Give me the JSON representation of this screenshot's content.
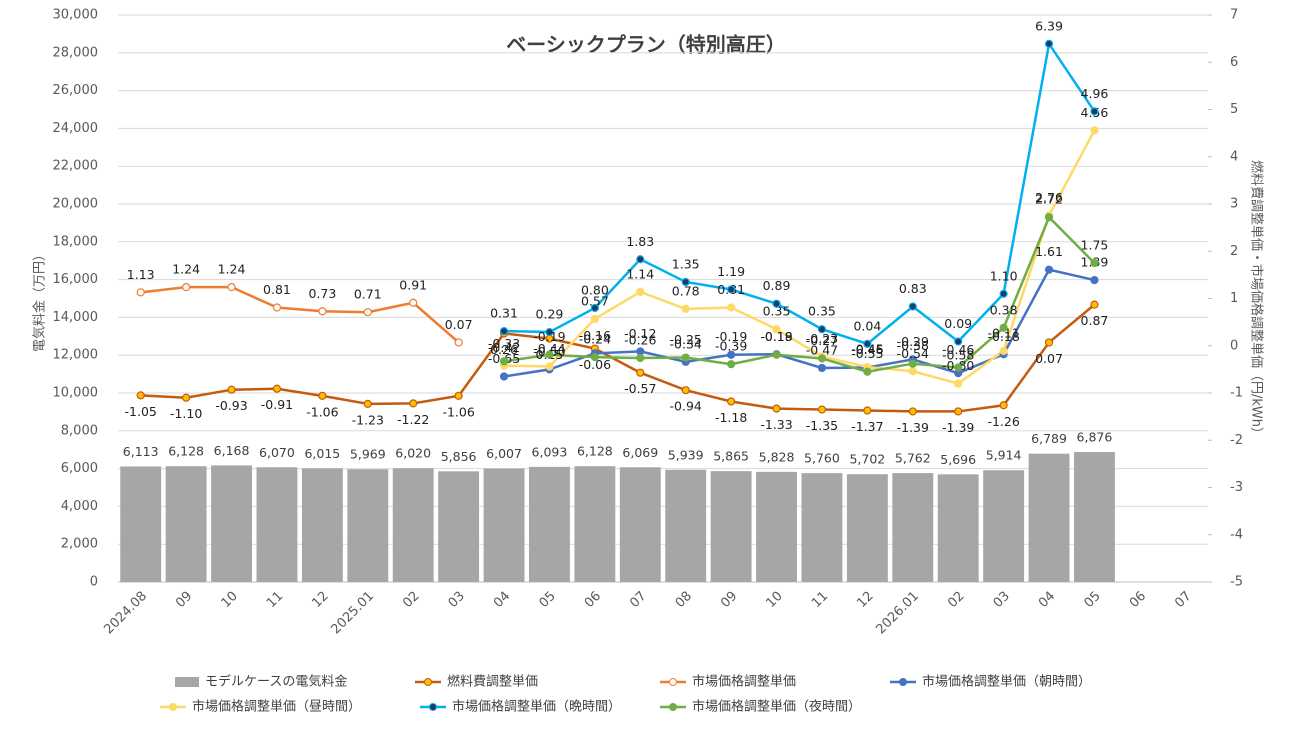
{
  "chart_data": {
    "type": "bar_line",
    "title": "ベーシックプラン（特別高圧）",
    "ylabel": "電気料金（万円）",
    "y2label": "燃料費調整単価・市場価格調整単価（円/kWh）",
    "categories": [
      "2024.08",
      "09",
      "10",
      "11",
      "12",
      "2025.01",
      "02",
      "03",
      "04",
      "05",
      "06",
      "07",
      "08",
      "09",
      "10",
      "11",
      "12",
      "2026.01",
      "02",
      "03",
      "04",
      "05",
      "06",
      "07"
    ],
    "bars": {
      "name": "モデルケースの電気料金",
      "color": "#a6a6a6",
      "values": [
        6113,
        6128,
        6168,
        6070,
        6015,
        5969,
        6020,
        5856,
        6007,
        6093,
        6128,
        6069,
        5939,
        5865,
        5828,
        5760,
        5702,
        5762,
        5696,
        5914,
        6789,
        6876,
        null,
        null
      ],
      "value_labels": [
        "6,113",
        "6,128",
        "6,168",
        "6,070",
        "6,015",
        "5,969",
        "6,020",
        "5,856",
        "6,007",
        "6,093",
        "6,128",
        "6,069",
        "5,939",
        "5,865",
        "5,828",
        "5,760",
        "5,702",
        "5,762",
        "5,696",
        "5,914",
        "6,789",
        "6,876",
        null,
        null
      ]
    },
    "series": [
      {
        "name": "燃料費調整単価",
        "color": "#c55a11",
        "marker_color": "#ffc000",
        "axis": "y2",
        "label_side": "below",
        "values": [
          -1.05,
          -1.1,
          -0.93,
          -0.91,
          -1.06,
          -1.23,
          -1.22,
          -1.06,
          0.26,
          0.15,
          -0.06,
          -0.57,
          -0.94,
          -1.18,
          -1.33,
          -1.35,
          -1.37,
          -1.39,
          -1.39,
          -1.26,
          0.07,
          0.87,
          null,
          null
        ],
        "value_labels": [
          "-1.05",
          "-1.10",
          "-0.93",
          "-0.91",
          "-1.06",
          "-1.23",
          "-1.22",
          "-1.06",
          "0.26",
          "0.15",
          "-0.06",
          "-0.57",
          "-0.94",
          "-1.18",
          "-1.33",
          "-1.35",
          "-1.37",
          "-1.39",
          "-1.39",
          "-1.26",
          "0.07",
          "0.87",
          null,
          null
        ]
      },
      {
        "name": "市場価格調整単価",
        "color": "#ed7d31",
        "marker_color": "#ffffff",
        "axis": "y2",
        "label_side": "above",
        "values": [
          1.13,
          1.24,
          1.24,
          0.81,
          0.73,
          0.71,
          0.91,
          0.07,
          null,
          null,
          null,
          null,
          null,
          null,
          null,
          null,
          null,
          null,
          null,
          null,
          null,
          null,
          null,
          null
        ],
        "value_labels": [
          "1.13",
          "1.24",
          "1.24",
          "0.81",
          "0.73",
          "0.71",
          "0.91",
          "0.07",
          null,
          null,
          null,
          null,
          null,
          null,
          null,
          null,
          null,
          null,
          null,
          null,
          null,
          null,
          null,
          null
        ]
      },
      {
        "name": "市場価格調整単価（朝時間）",
        "color": "#4472c4",
        "marker_color": "#4472c4",
        "axis": "y2",
        "label_side": "above",
        "values": [
          null,
          null,
          null,
          null,
          null,
          null,
          null,
          null,
          -0.65,
          -0.5,
          -0.16,
          -0.12,
          -0.34,
          -0.19,
          -0.18,
          -0.47,
          -0.46,
          -0.29,
          -0.58,
          -0.18,
          1.61,
          1.39,
          null,
          null
        ],
        "value_labels": [
          null,
          null,
          null,
          null,
          null,
          null,
          null,
          null,
          "-0.65",
          "-0.50",
          "-0.16",
          "-0.12",
          "-0.34",
          "-0.19",
          "-0.18",
          "-0.47",
          "-0.46",
          "-0.29",
          "-0.58",
          "-0.18",
          "1.61",
          "1.39",
          null,
          null
        ]
      },
      {
        "name": "市場価格調整単価（昼時間）",
        "color": "#ffd966",
        "marker_color": "#ffd966",
        "axis": "y2",
        "label_side": "above",
        "values": [
          null,
          null,
          null,
          null,
          null,
          null,
          null,
          null,
          -0.42,
          -0.44,
          0.57,
          1.14,
          0.78,
          0.81,
          0.35,
          -0.23,
          -0.45,
          -0.54,
          -0.8,
          -0.11,
          2.76,
          4.56,
          null,
          null
        ],
        "value_labels": [
          null,
          null,
          null,
          null,
          null,
          null,
          null,
          null,
          "-0.42",
          "-0.44",
          "0.57",
          "1.14",
          "0.78",
          "0.81",
          "0.35",
          "-0.23",
          "-0.45",
          "-0.54",
          "-0.80",
          "-0.11",
          "2.76",
          "4.56",
          null,
          null
        ]
      },
      {
        "name": "市場価格調整単価（晩時間）",
        "color": "#00b0f0",
        "marker_color": "#1f3864",
        "axis": "y2",
        "label_side": "above",
        "values": [
          null,
          null,
          null,
          null,
          null,
          null,
          null,
          null,
          0.31,
          0.29,
          0.8,
          1.83,
          1.35,
          1.19,
          0.89,
          0.35,
          0.04,
          0.83,
          0.09,
          1.1,
          6.39,
          4.96,
          null,
          null
        ],
        "value_labels": [
          null,
          null,
          null,
          null,
          null,
          null,
          null,
          null,
          "0.31",
          "0.29",
          "0.80",
          "1.83",
          "1.35",
          "1.19",
          "0.89",
          "0.35",
          "0.04",
          "0.83",
          "0.09",
          "1.10",
          "6.39",
          "4.96",
          null,
          null
        ]
      },
      {
        "name": "市場価格調整単価（夜時間）",
        "color": "#70ad47",
        "marker_color": "#70ad47",
        "axis": "y2",
        "label_side": "above",
        "values": [
          null,
          null,
          null,
          null,
          null,
          null,
          null,
          null,
          -0.33,
          -0.19,
          -0.24,
          -0.26,
          -0.25,
          -0.39,
          -0.19,
          -0.27,
          -0.55,
          -0.38,
          -0.46,
          0.38,
          2.72,
          1.75,
          null,
          null
        ],
        "value_labels": [
          null,
          null,
          null,
          null,
          null,
          null,
          null,
          null,
          "-0.33",
          "-0.19",
          "-0.24",
          "-0.26",
          "-0.25",
          "-0.39",
          "-0.19",
          "-0.27",
          "-0.55",
          "-0.38",
          "-0.46",
          "0.38",
          "2.72",
          "1.75",
          null,
          null
        ]
      }
    ],
    "ylim": [
      0,
      30000
    ],
    "yticks": [
      0,
      {
        "value": 2000,
        "label": "2,000"
      },
      {
        "value": 4000,
        "label": "4,000"
      },
      {
        "value": 6000,
        "label": "6,000"
      },
      {
        "value": 8000,
        "label": "8,000"
      },
      {
        "value": 10000,
        "label": "10,000"
      },
      {
        "value": 12000,
        "label": "12,000"
      },
      {
        "value": 14000,
        "label": "14,000"
      },
      {
        "value": 16000,
        "label": "16,000"
      },
      {
        "value": 18000,
        "label": "18,000"
      },
      {
        "value": 20000,
        "label": "20,000"
      },
      {
        "value": 22000,
        "label": "22,000"
      },
      {
        "value": 24000,
        "label": "24,000"
      },
      {
        "value": 26000,
        "label": "26,000"
      },
      {
        "value": 28000,
        "label": "28,000"
      },
      {
        "value": 30000,
        "label": "30,000"
      }
    ],
    "y2lim": [
      -5,
      7
    ],
    "y2ticks": [
      -5,
      -4,
      -3,
      -2,
      -1,
      0,
      1,
      2,
      3,
      4,
      5,
      6,
      7
    ],
    "grid": true
  }
}
